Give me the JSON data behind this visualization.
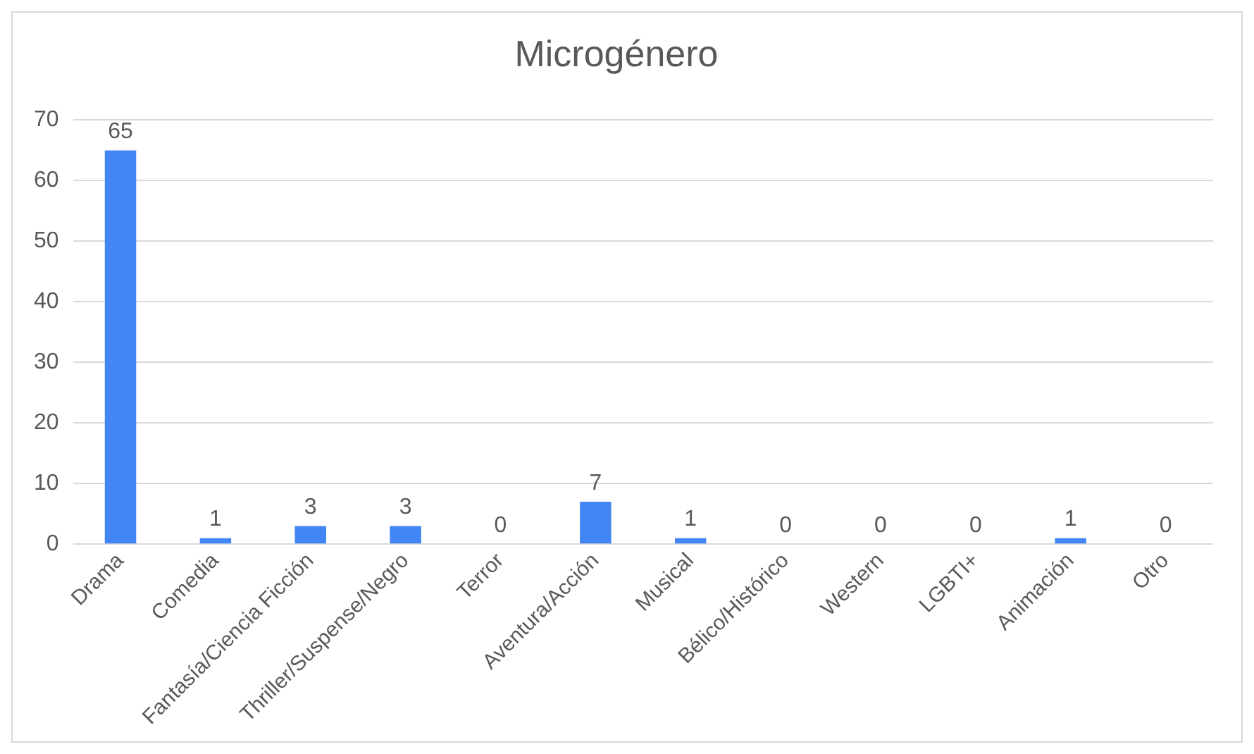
{
  "chart_data": {
    "type": "bar",
    "title": "Microgénero",
    "categories": [
      "Drama",
      "Comedia",
      "Fantasía/Ciencia Ficción",
      "Thriller/Suspense/Negro",
      "Terror",
      "Aventura/Acción",
      "Musical",
      "Bélico/Histórico",
      "Western",
      "LGBTI+",
      "Animación",
      "Otro"
    ],
    "values": [
      65,
      1,
      3,
      3,
      0,
      7,
      1,
      0,
      0,
      0,
      1,
      0
    ],
    "color": "#4285f4",
    "ylim": [
      0,
      70
    ],
    "yticks": [
      0,
      10,
      20,
      30,
      40,
      50,
      60,
      70
    ],
    "grid": "y",
    "legend": false,
    "data_labels": true
  }
}
